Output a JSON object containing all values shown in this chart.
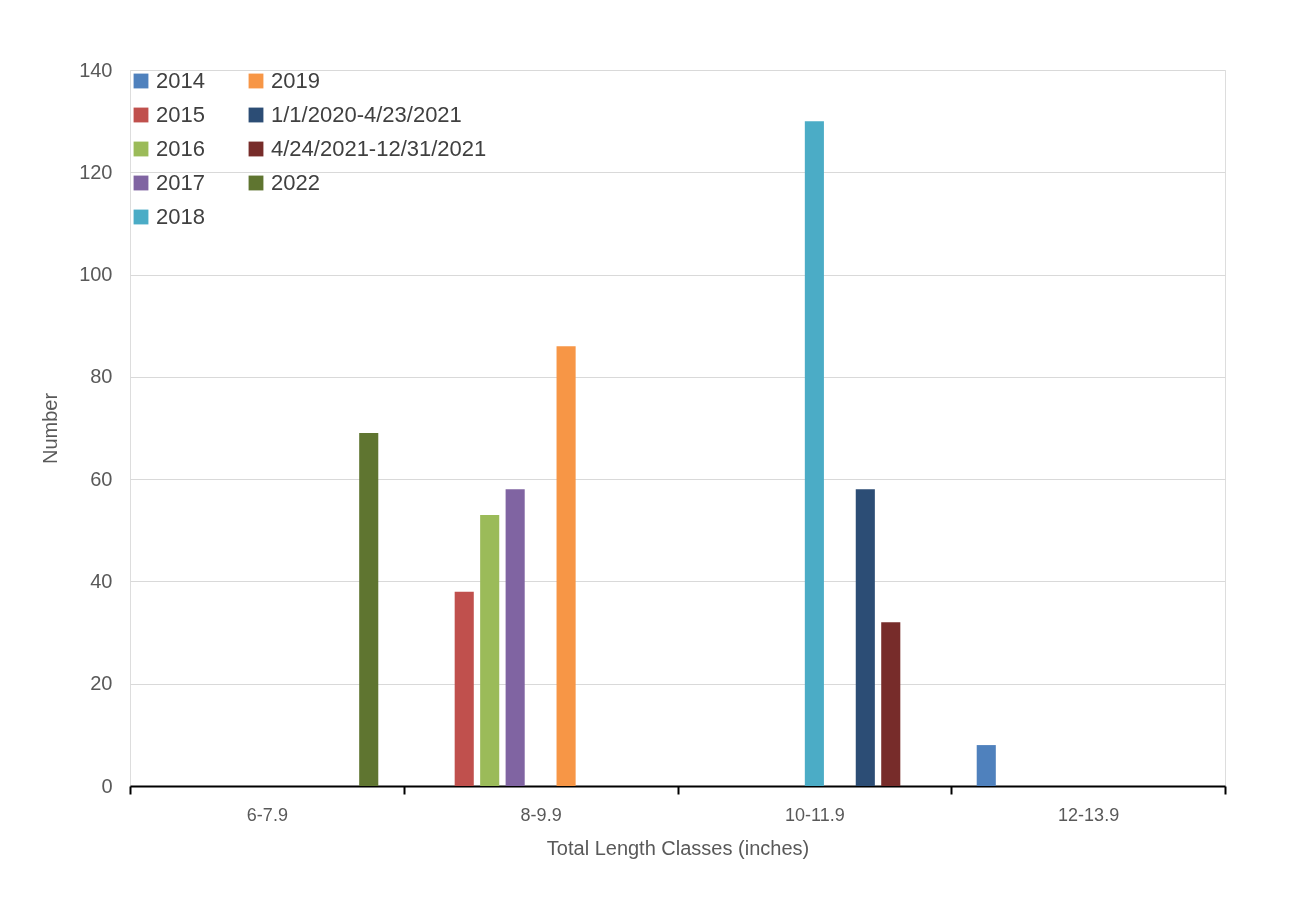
{
  "chart_data": {
    "type": "bar",
    "xlabel": "Total Length Classes (inches)",
    "ylabel": "Number",
    "categories": [
      "6-7.9",
      "8-9.9",
      "10-11.9",
      "12-13.9"
    ],
    "series": [
      {
        "name": "2014",
        "color": "#4f81bd",
        "values": [
          null,
          null,
          null,
          8
        ]
      },
      {
        "name": "2015",
        "color": "#c0504d",
        "values": [
          null,
          38,
          null,
          null
        ]
      },
      {
        "name": "2016",
        "color": "#9bbb59",
        "values": [
          null,
          53,
          null,
          null
        ]
      },
      {
        "name": "2017",
        "color": "#8064a2",
        "values": [
          null,
          58,
          null,
          null
        ]
      },
      {
        "name": "2018",
        "color": "#4bacc6",
        "values": [
          null,
          null,
          130,
          null
        ]
      },
      {
        "name": "2019",
        "color": "#f79646",
        "values": [
          null,
          86,
          null,
          null
        ]
      },
      {
        "name": "1/1/2020-4/23/2021",
        "color": "#2c4d75",
        "values": [
          null,
          null,
          58,
          null
        ]
      },
      {
        "name": "4/24/2021-12/31/2021",
        "color": "#772c2a",
        "values": [
          null,
          null,
          32,
          null
        ]
      },
      {
        "name": "2022",
        "color": "#5f7530",
        "values": [
          69,
          null,
          null,
          null
        ]
      }
    ],
    "ylim": [
      0,
      140
    ],
    "yticks": [
      0,
      20,
      40,
      60,
      80,
      100,
      120,
      140
    ],
    "grid": "y",
    "legend": "top left"
  }
}
